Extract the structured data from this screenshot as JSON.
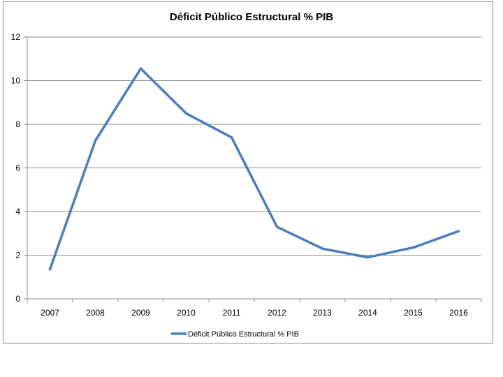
{
  "chart_data": {
    "type": "line",
    "title": "Déficit Público Estructural % PIB",
    "xlabel": "",
    "ylabel": "",
    "categories": [
      "2007",
      "2008",
      "2009",
      "2010",
      "2011",
      "2012",
      "2013",
      "2014",
      "2015",
      "2016"
    ],
    "series": [
      {
        "name": "Déficit Público Estructural % PIB",
        "values": [
          1.35,
          7.25,
          10.55,
          8.5,
          7.4,
          3.3,
          2.3,
          1.9,
          2.35,
          3.1
        ],
        "color": "#4a7ebb"
      }
    ],
    "ylim": [
      0,
      12
    ],
    "yticks": [
      0,
      2,
      4,
      6,
      8,
      10,
      12
    ],
    "grid": true,
    "legend": "bottom"
  }
}
